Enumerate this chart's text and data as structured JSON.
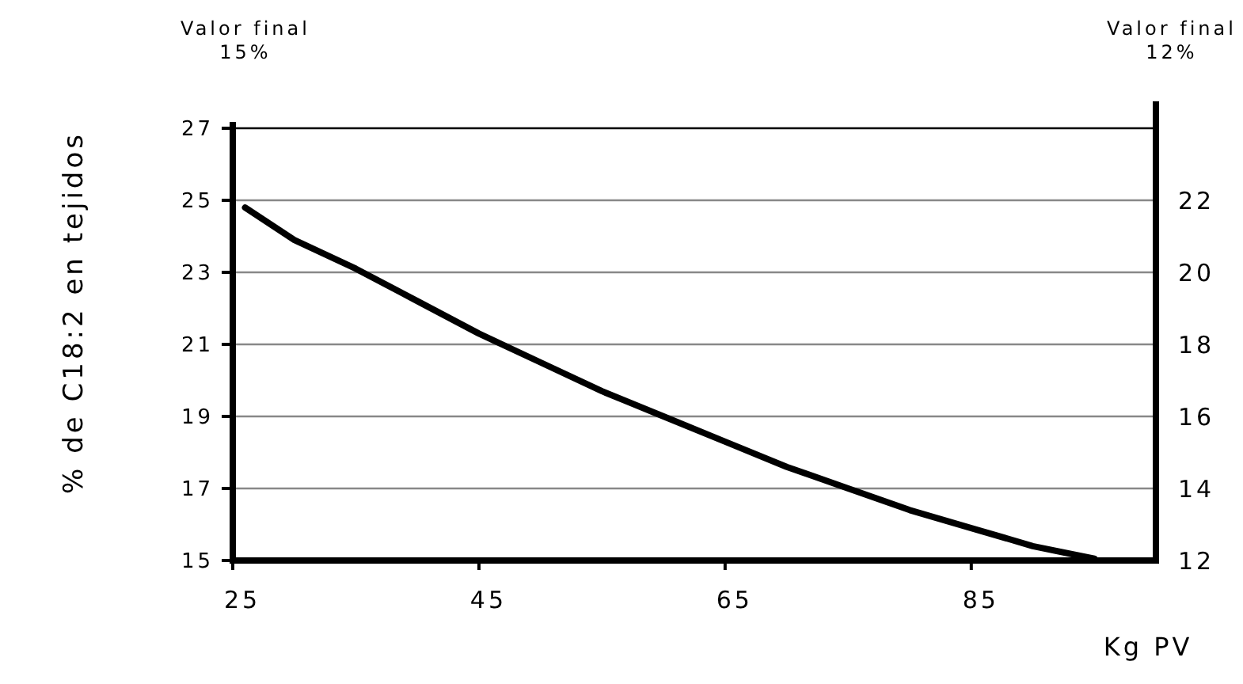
{
  "chart_data": {
    "type": "line",
    "xlabel": "Kg PV",
    "ylabel": "% de C18:2 en tejidos",
    "annotations": [
      "Valor final\n15%",
      "Valor final\n12%"
    ],
    "x": [
      26,
      30,
      35,
      40,
      45,
      50,
      55,
      60,
      65,
      70,
      75,
      80,
      85,
      90,
      95
    ],
    "series": [
      {
        "color": "#000000",
        "values": [
          24.8,
          23.9,
          23.1,
          22.2,
          21.3,
          20.5,
          19.7,
          19.0,
          18.3,
          17.6,
          17.0,
          16.4,
          15.9,
          15.4,
          15.05
        ]
      }
    ],
    "xlim": [
      25,
      100
    ],
    "xticks": [
      25,
      45,
      65,
      85
    ],
    "ylim": [
      15,
      27
    ],
    "yticks": [
      15,
      17,
      19,
      21,
      23,
      25,
      27
    ],
    "y2lim": [
      12,
      24
    ],
    "y2ticks": [
      12,
      14,
      16,
      18,
      20,
      22
    ],
    "grid": "y",
    "marker": "none",
    "line_style": "solid"
  }
}
